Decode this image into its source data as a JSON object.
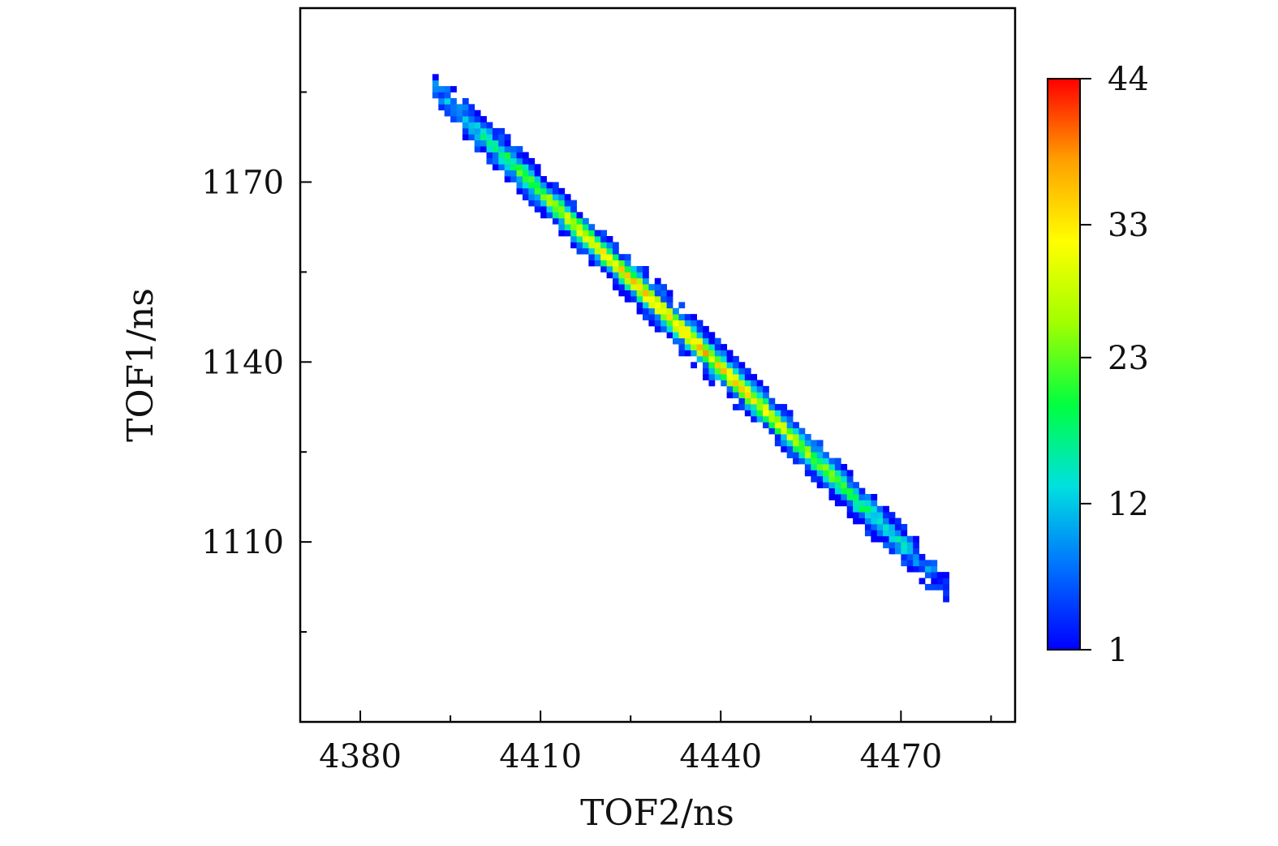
{
  "chart_data": {
    "type": "heatmap",
    "title": "",
    "xlabel": "TOF2/ns",
    "ylabel": "TOF1/ns",
    "xlim": [
      4370,
      4489
    ],
    "ylim": [
      1080,
      1199
    ],
    "x_ticks": [
      4380,
      4410,
      4440,
      4470
    ],
    "y_ticks": [
      1110,
      1140,
      1170
    ],
    "x_minor_ticks": [
      4395,
      4425,
      4455,
      4485
    ],
    "y_minor_ticks": [
      1095,
      1125,
      1155,
      1185
    ],
    "grid": false,
    "bin_size": 1,
    "ridge": {
      "description_units": "data",
      "start": {
        "x": 4392,
        "y": 1185
      },
      "end": {
        "x": 4477,
        "y": 1102
      },
      "peak_x": 4432
    },
    "colorbar": {
      "min": 1,
      "max": 44,
      "ticks": [
        1,
        12,
        23,
        33,
        44
      ],
      "colors": [
        "#0000ff",
        "#0070ff",
        "#00e0e0",
        "#00ff40",
        "#a0ff00",
        "#ffff00",
        "#ffa000",
        "#ff0000"
      ]
    }
  }
}
